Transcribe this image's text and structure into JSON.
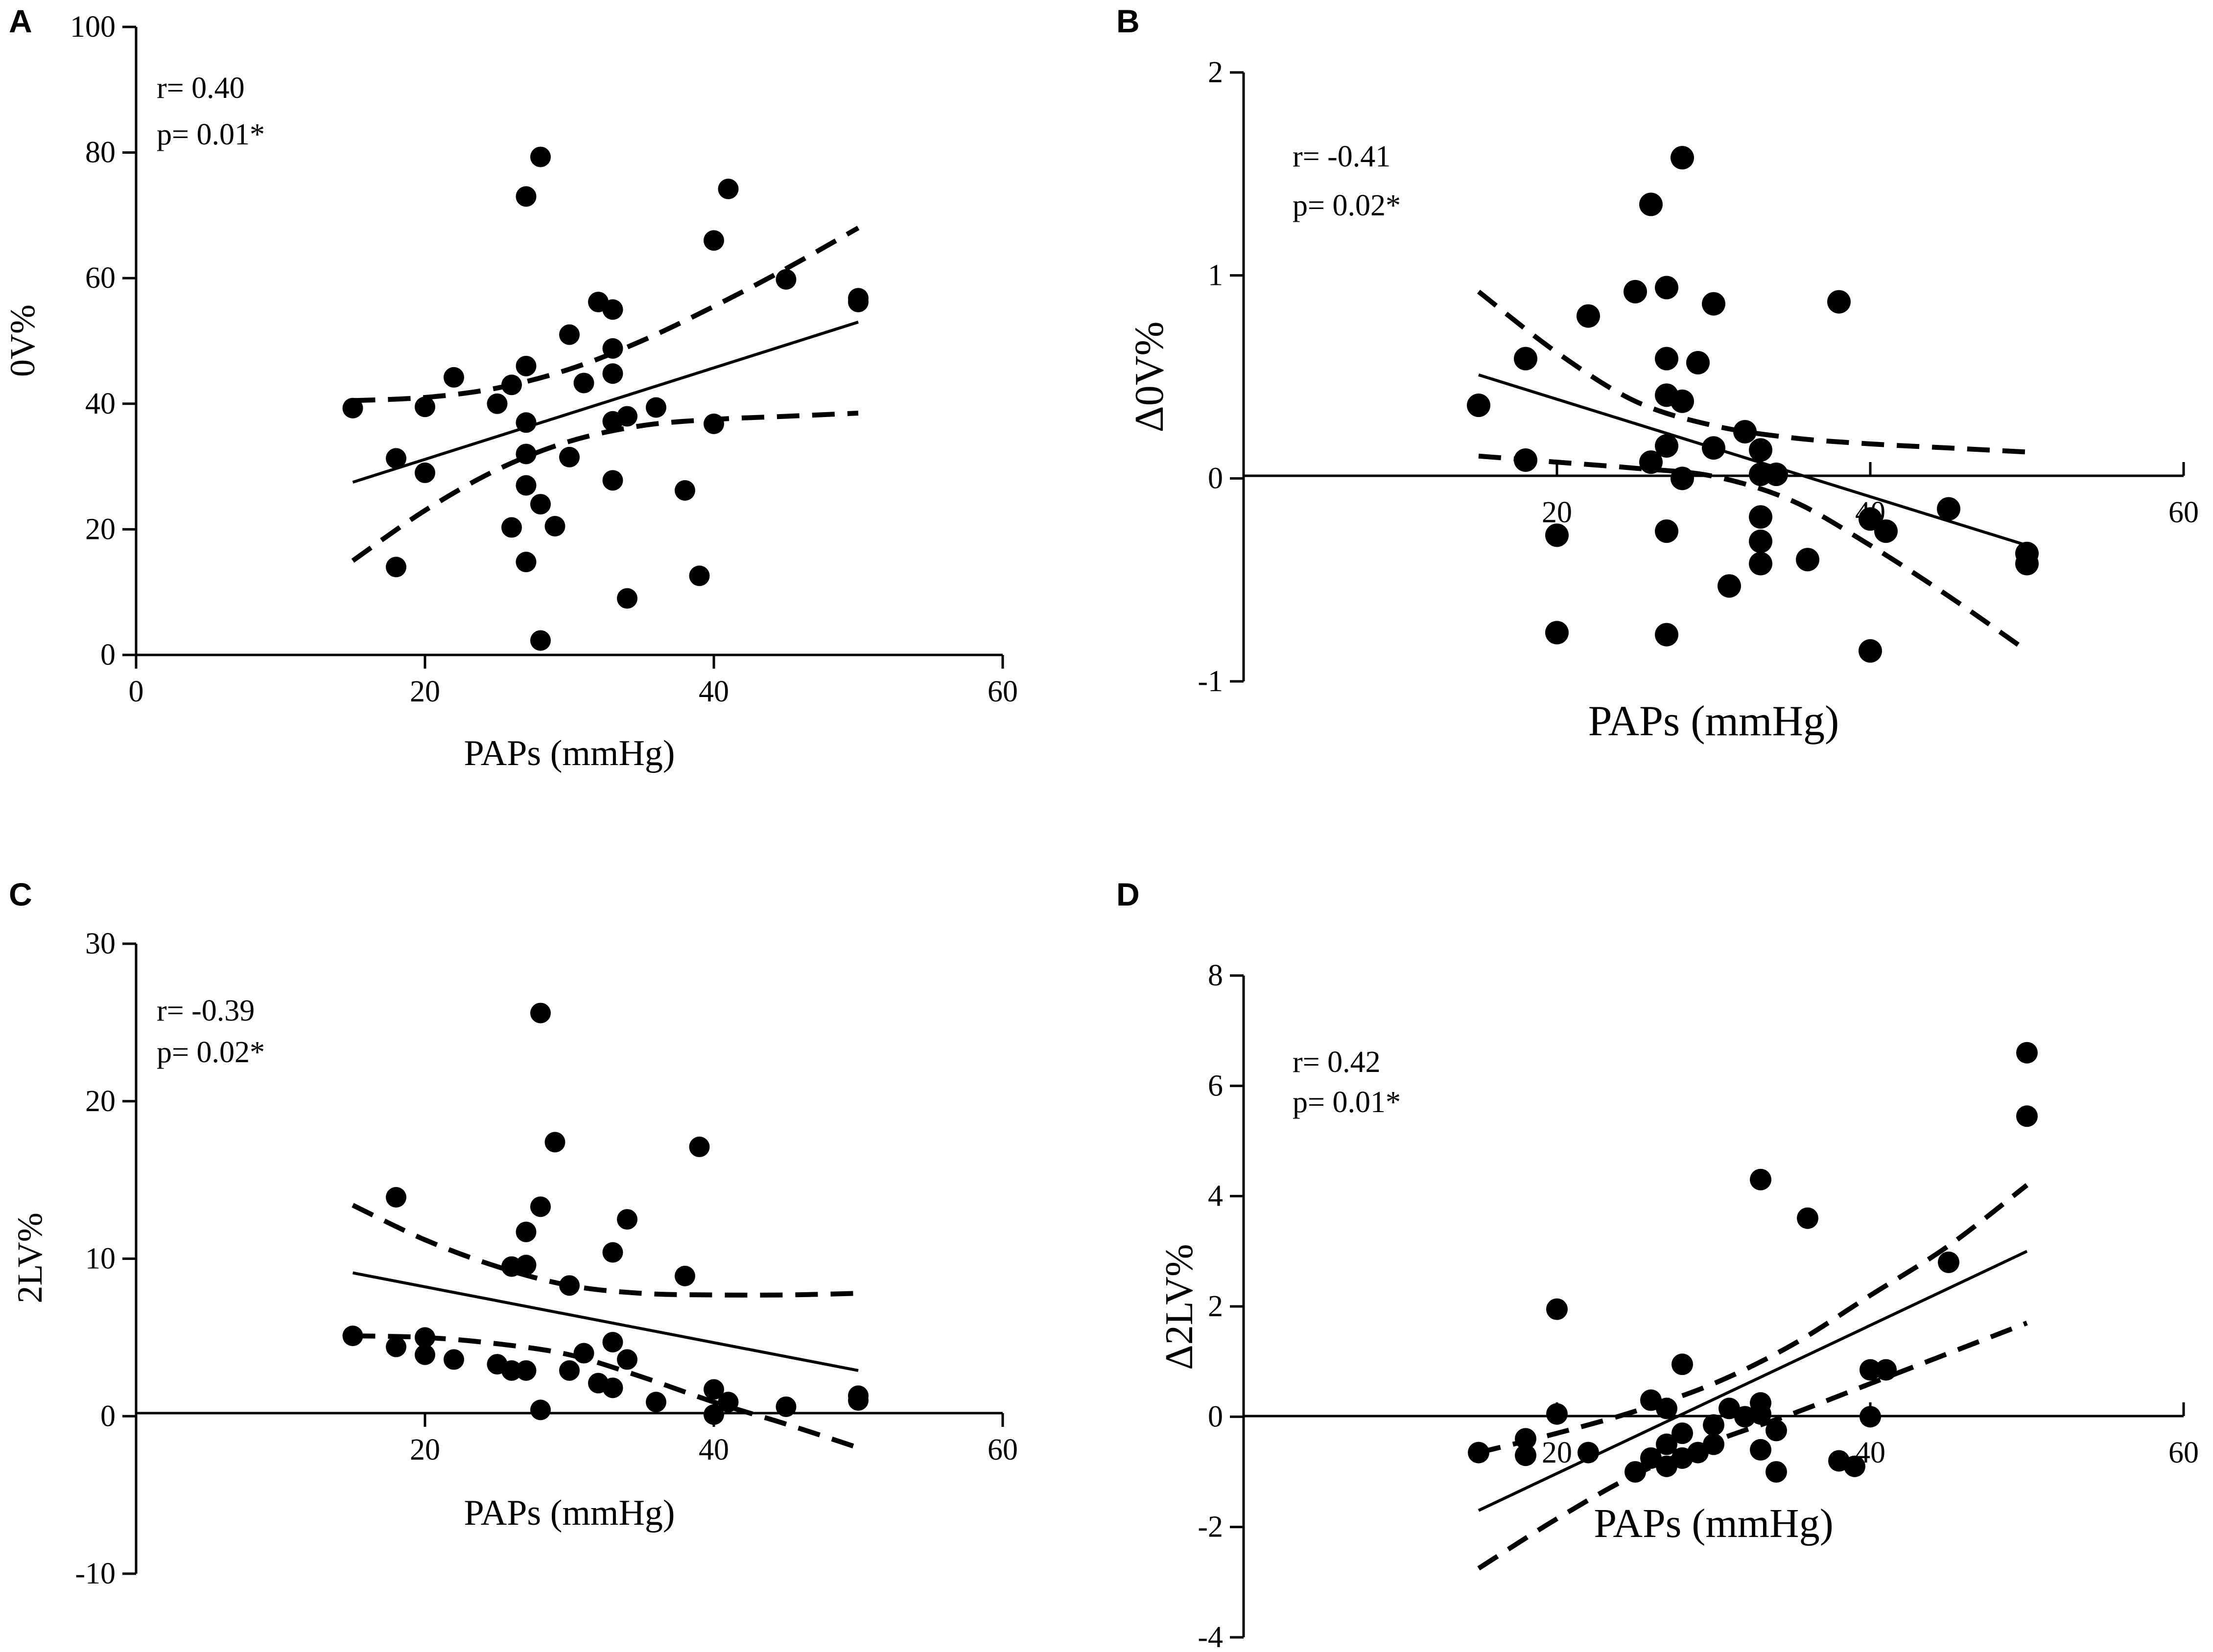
{
  "chart_data": [
    {
      "panel": "A",
      "type": "scatter",
      "xlabel": "PAPs (mmHg)",
      "ylabel": "0V%",
      "xlim": [
        0,
        60
      ],
      "ylim": [
        0,
        100
      ],
      "xticks": [
        0,
        20,
        40,
        60
      ],
      "yticks": [
        0,
        20,
        40,
        60,
        80,
        100
      ],
      "stats": {
        "r": "r= 0.40",
        "p": "p= 0.01*"
      },
      "regression": {
        "x": [
          15,
          50
        ],
        "y": [
          27.5,
          53
        ]
      },
      "ci_upper": {
        "x": [
          15,
          20,
          25,
          30,
          35,
          40,
          45,
          50
        ],
        "y": [
          40.5,
          41,
          42.5,
          45.5,
          50,
          55.5,
          61.5,
          68
        ]
      },
      "ci_lower": {
        "x": [
          15,
          20,
          25,
          30,
          35,
          40,
          45,
          50
        ],
        "y": [
          15,
          23,
          29.5,
          34,
          36.5,
          37.5,
          38,
          38.5
        ]
      },
      "points": [
        [
          15,
          39.3
        ],
        [
          18,
          14
        ],
        [
          18,
          31.3
        ],
        [
          20,
          39.5
        ],
        [
          20,
          29
        ],
        [
          22,
          44.2
        ],
        [
          25,
          40
        ],
        [
          26,
          43
        ],
        [
          26,
          20.3
        ],
        [
          27,
          73
        ],
        [
          27,
          46
        ],
        [
          27,
          37
        ],
        [
          27,
          32
        ],
        [
          27,
          27
        ],
        [
          27,
          14.8
        ],
        [
          28,
          79.3
        ],
        [
          28,
          24
        ],
        [
          28,
          2.3
        ],
        [
          29,
          20.5
        ],
        [
          30,
          51
        ],
        [
          30,
          31.5
        ],
        [
          31,
          43.3
        ],
        [
          32,
          56.2
        ],
        [
          33,
          55
        ],
        [
          33,
          48.8
        ],
        [
          33,
          44.8
        ],
        [
          33,
          37.2
        ],
        [
          33,
          27.8
        ],
        [
          34,
          38
        ],
        [
          34,
          9
        ],
        [
          36,
          39.4
        ],
        [
          38,
          26.2
        ],
        [
          39,
          12.6
        ],
        [
          40,
          66
        ],
        [
          40,
          36.8
        ],
        [
          41,
          74.2
        ],
        [
          45,
          59.8
        ],
        [
          50,
          56.8
        ],
        [
          50,
          56.2
        ]
      ]
    },
    {
      "panel": "B",
      "type": "scatter",
      "xlabel": "PAPs (mmHg)",
      "ylabel": "Δ0V%",
      "xlim": [
        0,
        60
      ],
      "ylim": [
        -1,
        2
      ],
      "xticks": [
        20,
        40,
        60
      ],
      "yticks": [
        -1,
        0,
        1,
        2
      ],
      "stats": {
        "r": "r= -0.41",
        "p": "p= 0.02*"
      },
      "regression": {
        "x": [
          15,
          50
        ],
        "y": [
          0.51,
          -0.33
        ]
      },
      "ci_upper": {
        "x": [
          15,
          20,
          25,
          30,
          35,
          40,
          45,
          50
        ],
        "y": [
          0.92,
          0.62,
          0.38,
          0.26,
          0.2,
          0.17,
          0.15,
          0.13
        ]
      },
      "ci_lower": {
        "x": [
          15,
          20,
          25,
          30,
          35,
          40,
          45,
          50
        ],
        "y": [
          0.11,
          0.08,
          0.05,
          0.01,
          -0.11,
          -0.33,
          -0.58,
          -0.85
        ]
      },
      "points": [
        [
          15,
          0.36
        ],
        [
          18,
          0.59
        ],
        [
          18,
          0.09
        ],
        [
          20,
          -0.28
        ],
        [
          20,
          -0.76
        ],
        [
          22,
          0.8
        ],
        [
          25,
          0.92
        ],
        [
          26,
          1.35
        ],
        [
          26,
          0.08
        ],
        [
          27,
          0.94
        ],
        [
          27,
          0.59
        ],
        [
          27,
          0.41
        ],
        [
          27,
          0.16
        ],
        [
          27,
          -0.26
        ],
        [
          27,
          -0.77
        ],
        [
          28,
          1.58
        ],
        [
          28,
          0.38
        ],
        [
          28,
          0.0
        ],
        [
          29,
          0.57
        ],
        [
          30,
          0.86
        ],
        [
          30,
          0.15
        ],
        [
          31,
          -0.53
        ],
        [
          32,
          0.23
        ],
        [
          33,
          0.14
        ],
        [
          33,
          0.02
        ],
        [
          33,
          -0.19
        ],
        [
          33,
          -0.31
        ],
        [
          33,
          -0.42
        ],
        [
          34,
          0.02
        ],
        [
          36,
          -0.4
        ],
        [
          38,
          0.87
        ],
        [
          40,
          -0.2
        ],
        [
          40,
          -0.85
        ],
        [
          41,
          -0.26
        ],
        [
          45,
          -0.15
        ],
        [
          50,
          -0.37
        ],
        [
          50,
          -0.42
        ]
      ]
    },
    {
      "panel": "C",
      "type": "scatter",
      "xlabel": "PAPs (mmHg)",
      "ylabel": "2LV%",
      "xlim": [
        0,
        60
      ],
      "ylim": [
        -10,
        30
      ],
      "xticks": [
        20,
        40,
        60
      ],
      "yticks": [
        -10,
        0,
        10,
        20,
        30
      ],
      "stats": {
        "r": "r= -0.39",
        "p": "p= 0.02*"
      },
      "regression": {
        "x": [
          15,
          50
        ],
        "y": [
          9.1,
          2.9
        ]
      },
      "ci_upper": {
        "x": [
          15,
          20,
          25,
          30,
          35,
          40,
          45,
          50
        ],
        "y": [
          13.4,
          11.2,
          9.5,
          8.3,
          7.8,
          7.7,
          7.7,
          7.8
        ]
      },
      "ci_lower": {
        "x": [
          15,
          20,
          25,
          30,
          35,
          40,
          45,
          50
        ],
        "y": [
          5.1,
          5.0,
          4.6,
          3.9,
          2.5,
          0.9,
          -0.5,
          -2.0
        ]
      },
      "points": [
        [
          15,
          5.1
        ],
        [
          18,
          13.9
        ],
        [
          18,
          4.4
        ],
        [
          20,
          5
        ],
        [
          20,
          3.9
        ],
        [
          22,
          3.6
        ],
        [
          25,
          3.3
        ],
        [
          26,
          9.5
        ],
        [
          26,
          2.9
        ],
        [
          27,
          11.7
        ],
        [
          27,
          9.6
        ],
        [
          27,
          2.9
        ],
        [
          28,
          25.6
        ],
        [
          28,
          13.3
        ],
        [
          28,
          0.4
        ],
        [
          29,
          17.4
        ],
        [
          30,
          8.3
        ],
        [
          30,
          2.9
        ],
        [
          31,
          4
        ],
        [
          32,
          2.1
        ],
        [
          33,
          10.4
        ],
        [
          33,
          4.7
        ],
        [
          33,
          1.8
        ],
        [
          34,
          12.5
        ],
        [
          34,
          3.6
        ],
        [
          36,
          0.9
        ],
        [
          38,
          8.9
        ],
        [
          39,
          17.1
        ],
        [
          40,
          1.7
        ],
        [
          40,
          0.1
        ],
        [
          41,
          0.9
        ],
        [
          45,
          0.6
        ],
        [
          50,
          1.3
        ],
        [
          50,
          1.0
        ]
      ]
    },
    {
      "panel": "D",
      "type": "scatter",
      "xlabel": "PAPs (mmHg)",
      "ylabel": "Δ2LV%",
      "xlim": [
        0,
        60
      ],
      "ylim": [
        -4,
        8
      ],
      "xticks": [
        20,
        40,
        60
      ],
      "yticks": [
        -4,
        -2,
        0,
        2,
        4,
        6,
        8
      ],
      "stats": {
        "r": "r= 0.42",
        "p": "p= 0.01*"
      },
      "regression": {
        "x": [
          15,
          50
        ],
        "y": [
          -1.7,
          3.0
        ]
      },
      "ci_upper": {
        "x": [
          15,
          20,
          25,
          30,
          35,
          40,
          45,
          50
        ],
        "y": [
          -0.65,
          -0.3,
          0.1,
          0.6,
          1.3,
          2.2,
          3.1,
          4.2
        ]
      },
      "ci_lower": {
        "x": [
          15,
          20,
          25,
          30,
          35,
          40,
          45,
          50
        ],
        "y": [
          -2.75,
          -1.85,
          -1.05,
          -0.45,
          0.05,
          0.6,
          1.15,
          1.7
        ]
      },
      "points": [
        [
          15,
          -0.65
        ],
        [
          18,
          -0.4
        ],
        [
          18,
          -0.7
        ],
        [
          20,
          1.95
        ],
        [
          20,
          0.05
        ],
        [
          22,
          -0.65
        ],
        [
          25,
          -1.0
        ],
        [
          26,
          0.3
        ],
        [
          26,
          -0.75
        ],
        [
          27,
          0.15
        ],
        [
          27,
          -0.5
        ],
        [
          27,
          -0.9
        ],
        [
          28,
          0.95
        ],
        [
          28,
          -0.3
        ],
        [
          28,
          -0.75
        ],
        [
          29,
          -0.65
        ],
        [
          30,
          -0.15
        ],
        [
          30,
          -0.5
        ],
        [
          31,
          0.15
        ],
        [
          32,
          0.0
        ],
        [
          33,
          4.3
        ],
        [
          33,
          0.25
        ],
        [
          33,
          0.05
        ],
        [
          33,
          -0.6
        ],
        [
          34,
          -0.25
        ],
        [
          34,
          -1.0
        ],
        [
          36,
          3.6
        ],
        [
          38,
          -0.8
        ],
        [
          39,
          -0.9
        ],
        [
          40,
          0.85
        ],
        [
          40,
          0.0
        ],
        [
          41,
          0.85
        ],
        [
          45,
          2.8
        ],
        [
          50,
          6.6
        ],
        [
          50,
          5.45
        ]
      ]
    }
  ]
}
